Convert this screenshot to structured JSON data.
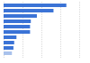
{
  "chart_data": {
    "type": "bar",
    "orientation": "horizontal",
    "categories": [
      null,
      null,
      null,
      null,
      null,
      null,
      null,
      null,
      null,
      null
    ],
    "values": [
      83,
      66,
      44,
      36,
      35,
      35,
      17,
      14,
      13,
      11
    ],
    "colors": [
      "#3b73d6",
      "#3b73d6",
      "#3b73d6",
      "#3b73d6",
      "#3b73d6",
      "#3b73d6",
      "#3b73d6",
      "#3b73d6",
      "#3b73d6",
      "#a9c2ec"
    ],
    "xlim": [
      0,
      100
    ],
    "xticks": [
      0,
      25,
      50,
      75,
      100
    ],
    "grid": true,
    "tick_labels": false
  }
}
